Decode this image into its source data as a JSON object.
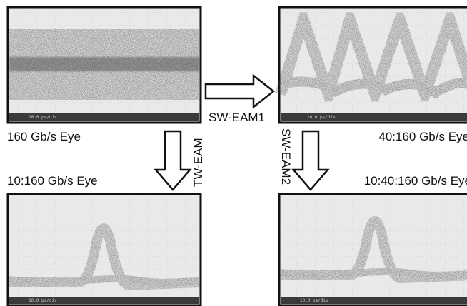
{
  "panels": [
    {
      "label": "160 Gb/s Eye",
      "footer": "10.0 ps/div"
    },
    {
      "label": "40:160 Gb/s Eye",
      "footer": "10.0 ps/div"
    },
    {
      "label": "10:160 Gb/s Eye",
      "footer": "10.0 ps/div"
    },
    {
      "label": "10:40:160 Gb/s Eye",
      "footer": "10.0 ps/div"
    }
  ],
  "arrows": [
    {
      "label": "SW-EAM1"
    },
    {
      "label": "TW-EAM"
    },
    {
      "label": "SW-EAM2"
    }
  ]
}
